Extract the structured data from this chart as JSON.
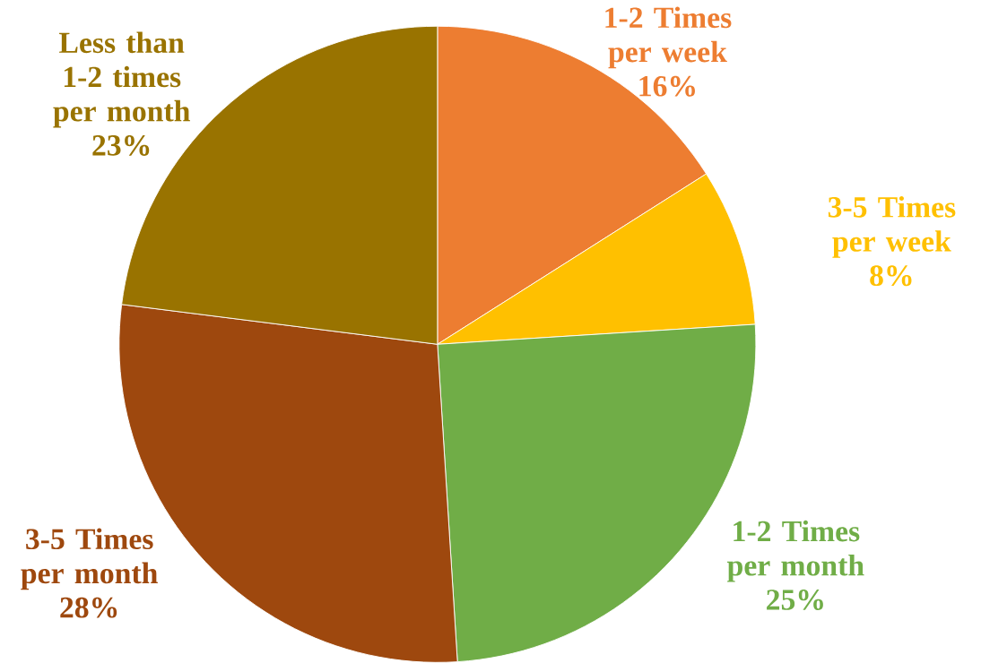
{
  "chart_data": {
    "type": "pie",
    "categories": [
      "1-2 Times per week",
      "3-5 Times per week",
      "1-2 Times per month",
      "3-5 Times per month",
      "Less than 1-2 times per month"
    ],
    "values": [
      16,
      8,
      25,
      28,
      23
    ],
    "value_labels": [
      "16%",
      "8%",
      "25%",
      "28%",
      "23%"
    ],
    "colors": [
      "#ed7d31",
      "#ffc000",
      "#70ad47",
      "#9e480e",
      "#997300"
    ]
  }
}
